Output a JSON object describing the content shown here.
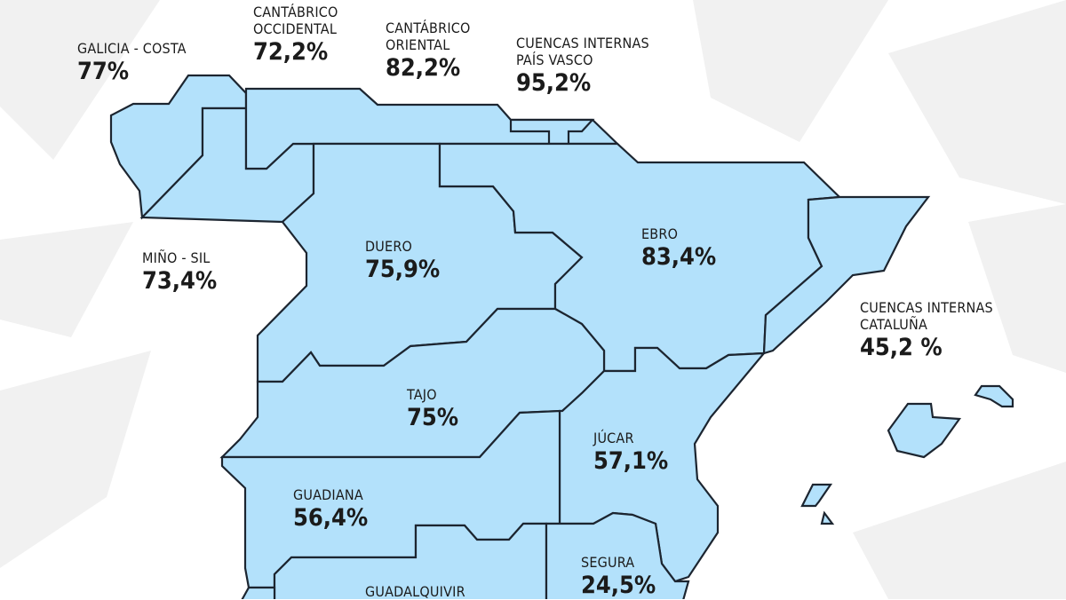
{
  "map": {
    "fill_color": "#b3e1fb",
    "border_color": "#1c2530",
    "regions": {
      "galicia_costa": {
        "name": "GALICIA - COSTA",
        "value": "77%"
      },
      "cantabrico_occidental": {
        "name1": "CANTÁBRICO",
        "name2": "OCCIDENTAL",
        "value": "72,2%"
      },
      "cantabrico_oriental": {
        "name1": "CANTÁBRICO",
        "name2": "ORIENTAL",
        "value": "82,2%"
      },
      "pais_vasco": {
        "name1": "CUENCAS INTERNAS",
        "name2": "PAÍS VASCO",
        "value": "95,2%"
      },
      "mino_sil": {
        "name": "MIÑO - SIL",
        "value": "73,4%"
      },
      "duero": {
        "name": "DUERO",
        "value": "75,9%"
      },
      "ebro": {
        "name": "EBRO",
        "value": "83,4%"
      },
      "cataluna": {
        "name1": "CUENCAS INTERNAS",
        "name2": "CATALUÑA",
        "value": "45,2 %"
      },
      "tajo": {
        "name": "TAJO",
        "value": "75%"
      },
      "jucar": {
        "name": "JÚCAR",
        "value": "57,1%"
      },
      "guadiana": {
        "name": "GUADIANA",
        "value": "56,4%"
      },
      "segura": {
        "name": "SEGURA",
        "value": "24,5%"
      },
      "guadalquivir": {
        "name": "GUADALQUIVIR"
      }
    }
  }
}
